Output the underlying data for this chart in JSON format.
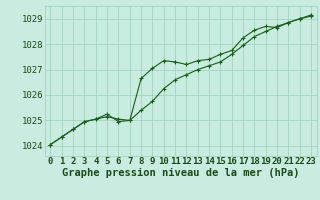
{
  "xlabel": "Graphe pression niveau de la mer (hPa)",
  "x_ticks": [
    0,
    1,
    2,
    3,
    4,
    5,
    6,
    7,
    8,
    9,
    10,
    11,
    12,
    13,
    14,
    15,
    16,
    17,
    18,
    19,
    20,
    21,
    22,
    23
  ],
  "ylim": [
    1023.6,
    1029.5
  ],
  "yticks": [
    1024,
    1025,
    1026,
    1027,
    1028,
    1029
  ],
  "line1": [
    1024.05,
    1024.35,
    1024.65,
    1024.95,
    1025.05,
    1025.15,
    1025.05,
    1025.0,
    1025.4,
    1025.75,
    1026.25,
    1026.6,
    1026.8,
    1027.0,
    1027.15,
    1027.3,
    1027.6,
    1027.95,
    1028.3,
    1028.5,
    1028.7,
    1028.85,
    1029.0,
    1029.1
  ],
  "line2": [
    1024.05,
    1024.35,
    1024.65,
    1024.95,
    1025.05,
    1025.25,
    1024.95,
    1025.0,
    1026.65,
    1027.05,
    1027.35,
    1027.3,
    1027.2,
    1027.35,
    1027.4,
    1027.6,
    1027.75,
    1028.25,
    1028.55,
    1028.7,
    1028.65,
    1028.85,
    1029.0,
    1029.15
  ],
  "bg_color": "#c8ece0",
  "grid_color": "#9ecfba",
  "line_color": "#1a5c1a",
  "text_color": "#1a4a1a",
  "tick_label_fontsize": 6.5,
  "xlabel_fontsize": 7.5
}
